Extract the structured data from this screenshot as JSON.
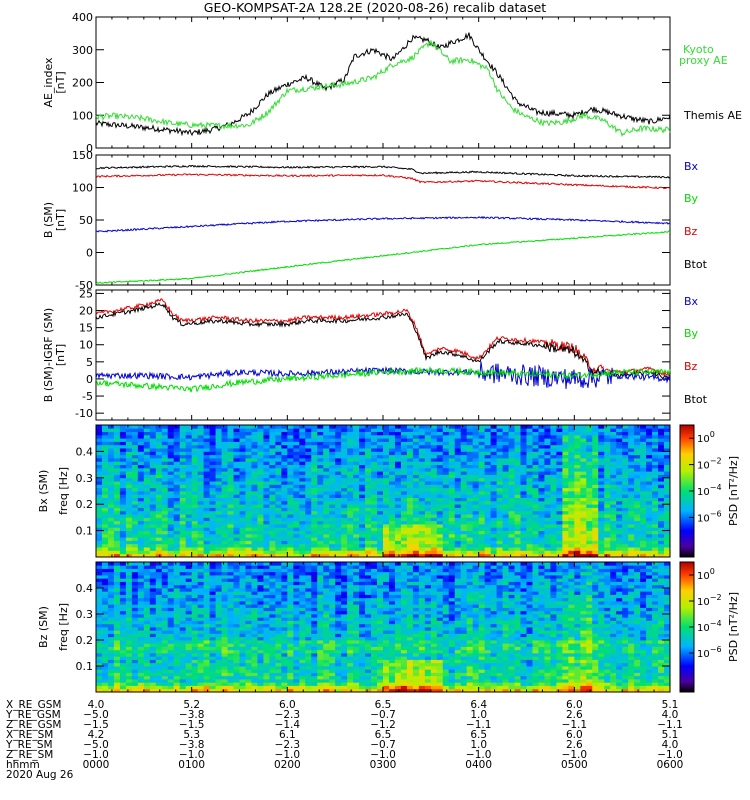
{
  "title": "GEO-KOMPSAT-2A 128.2E (2020-08-26) recalib dataset",
  "colors": {
    "black": "#000000",
    "red": "#e00000",
    "blue": "#0000d0",
    "green": "#00dd00",
    "kyoto": "#33dd33"
  },
  "chart_data": [
    {
      "type": "line",
      "id": "ae",
      "ylabel": "AE_index",
      "yunit": "[nT]",
      "ylim": [
        0,
        400
      ],
      "yticks": [
        "0",
        "100",
        "200",
        "300",
        "400"
      ],
      "legend": [
        {
          "label": "Kyoto",
          "color": "#33dd33"
        },
        {
          "label": "proxy AE",
          "color": "#33dd33"
        },
        {
          "label": "Themis AE",
          "color": "#000000"
        }
      ],
      "series": [
        {
          "name": "Themis AE",
          "color": "#000000",
          "x": [
            0,
            0.3,
            0.6,
            0.9,
            1.0,
            1.2,
            1.4,
            1.6,
            1.8,
            2.0,
            2.2,
            2.4,
            2.6,
            2.7,
            2.9,
            3.1,
            3.2,
            3.3,
            3.45,
            3.6,
            3.7,
            3.9,
            4.0,
            4.2,
            4.4,
            4.6,
            4.8,
            5.0,
            5.2,
            5.4,
            5.6,
            5.8,
            6.0
          ],
          "values": [
            75,
            68,
            60,
            50,
            45,
            55,
            72,
            105,
            165,
            195,
            215,
            180,
            210,
            280,
            300,
            270,
            300,
            335,
            330,
            305,
            320,
            345,
            300,
            225,
            140,
            110,
            105,
            100,
            120,
            105,
            90,
            80,
            95
          ]
        },
        {
          "name": "Kyoto proxy AE",
          "color": "#33dd33",
          "x": [
            0,
            0.2,
            0.5,
            0.8,
            1.0,
            1.3,
            1.6,
            1.8,
            2.0,
            2.3,
            2.6,
            2.9,
            3.1,
            3.3,
            3.5,
            3.7,
            3.9,
            4.1,
            4.2,
            4.35,
            4.5,
            4.7,
            4.9,
            5.1,
            5.3,
            5.5,
            5.7,
            6.0
          ],
          "values": [
            95,
            98,
            90,
            75,
            70,
            68,
            70,
            110,
            175,
            185,
            195,
            215,
            255,
            275,
            325,
            265,
            270,
            240,
            175,
            120,
            95,
            75,
            80,
            100,
            85,
            45,
            60,
            55
          ]
        }
      ]
    },
    {
      "type": "line",
      "id": "b",
      "ylabel": "B (SM)",
      "yunit": "[nT]",
      "ylim": [
        -50,
        150
      ],
      "yticks": [
        "-50",
        "0",
        "50",
        "100",
        "150"
      ],
      "legend": [
        {
          "label": "Bx",
          "color": "#0000d0"
        },
        {
          "label": "By",
          "color": "#00dd00"
        },
        {
          "label": "Bz",
          "color": "#e00000"
        },
        {
          "label": "Btot",
          "color": "#000000"
        }
      ],
      "series": [
        {
          "name": "Btot",
          "color": "#000000",
          "x": [
            0,
            1,
            2,
            3,
            3.3,
            3.4,
            4,
            5,
            6
          ],
          "values": [
            130,
            133,
            131,
            132,
            128,
            122,
            124,
            118,
            116
          ]
        },
        {
          "name": "Bz",
          "color": "#e00000",
          "x": [
            0,
            1,
            2,
            3,
            3.3,
            3.4,
            4,
            5,
            6
          ],
          "values": [
            117,
            120,
            118,
            119,
            114,
            108,
            110,
            104,
            99
          ]
        },
        {
          "name": "Bx",
          "color": "#0000d0",
          "x": [
            0,
            1,
            2,
            3,
            4,
            5,
            6
          ],
          "values": [
            32,
            40,
            48,
            52,
            54,
            50,
            45
          ]
        },
        {
          "name": "By",
          "color": "#00dd00",
          "x": [
            0,
            1,
            2,
            3,
            4,
            5,
            6
          ],
          "values": [
            -47,
            -40,
            -22,
            -5,
            12,
            22,
            32
          ]
        }
      ]
    },
    {
      "type": "line",
      "id": "dbigrf",
      "ylabel": "B (SM)-IGRF (SM)",
      "yunit": "[nT]",
      "ylim": [
        -12,
        26
      ],
      "yticks": [
        "-10",
        "-5",
        "0",
        "5",
        "10",
        "15",
        "20",
        "25"
      ],
      "legend": [
        {
          "label": "Bx",
          "color": "#0000d0"
        },
        {
          "label": "By",
          "color": "#00dd00"
        },
        {
          "label": "Bz",
          "color": "#e00000"
        },
        {
          "label": "Btot",
          "color": "#000000"
        }
      ],
      "series": [
        {
          "name": "Bz",
          "color": "#e00000",
          "x": [
            0,
            0.4,
            0.7,
            0.8,
            0.9,
            1.3,
            1.6,
            2.0,
            2.2,
            2.6,
            3.0,
            3.25,
            3.35,
            3.45,
            3.6,
            3.8,
            4.0,
            4.2,
            4.6,
            4.8,
            5.0,
            5.2,
            5.5,
            5.8,
            6.0
          ],
          "values": [
            19,
            21,
            23,
            19,
            17,
            18,
            17,
            17,
            18,
            18,
            19,
            20,
            15,
            7,
            9,
            8,
            6,
            12,
            11,
            10,
            9,
            3,
            2,
            3,
            1
          ]
        },
        {
          "name": "Btot",
          "color": "#000000",
          "x": [
            0,
            0.4,
            0.7,
            0.8,
            0.9,
            1.3,
            1.6,
            2.0,
            2.2,
            2.6,
            3.0,
            3.25,
            3.35,
            3.45,
            3.6,
            3.8,
            4.0,
            4.2,
            4.6,
            4.8,
            5.0,
            5.2,
            5.5,
            5.8,
            6.0
          ],
          "values": [
            18,
            20,
            22,
            18,
            16,
            17,
            16,
            16,
            17,
            17,
            18,
            19,
            14,
            6,
            8,
            7,
            5,
            11,
            10,
            9,
            8,
            2,
            1,
            2,
            0
          ]
        },
        {
          "name": "Bx",
          "color": "#0000d0",
          "x": [
            0,
            0.5,
            1.0,
            1.5,
            2.0,
            2.5,
            3.0,
            3.5,
            4.0,
            4.5,
            5.0,
            5.5,
            6.0
          ],
          "values": [
            1,
            1,
            0.5,
            2,
            1.5,
            2,
            2.5,
            2,
            2,
            1,
            0,
            1,
            0
          ]
        },
        {
          "name": "By",
          "color": "#00dd00",
          "x": [
            0,
            0.5,
            1.0,
            1.5,
            2.0,
            2.5,
            3.0,
            3.5,
            4.0,
            4.5,
            5.0,
            5.5,
            6.0
          ],
          "values": [
            -1,
            -2,
            -3,
            -1,
            0,
            1,
            2,
            2.5,
            2,
            1.5,
            1,
            2,
            2
          ]
        }
      ]
    },
    {
      "type": "heatmap",
      "id": "bx_psd",
      "ylabel": "Bx (SM)",
      "yunit": "freq [Hz]",
      "ylim": [
        0,
        0.5
      ],
      "yticks": [
        "0.1",
        "0.2",
        "0.3",
        "0.4"
      ],
      "colorbar": {
        "label": "PSD [nT²/Hz]",
        "range_log10": [
          -9,
          1
        ],
        "ticks": [
          "10^0",
          "10^-2",
          "10^-4",
          "10^-6"
        ]
      }
    },
    {
      "type": "heatmap",
      "id": "bz_psd",
      "ylabel": "Bz (SM)",
      "yunit": "freq [Hz]",
      "ylim": [
        0,
        0.5
      ],
      "yticks": [
        "0.1",
        "0.2",
        "0.3",
        "0.4"
      ],
      "colorbar": {
        "label": "PSD [nT²/Hz]",
        "range_log10": [
          -9,
          1
        ],
        "ticks": [
          "10^0",
          "10^-2",
          "10^-4",
          "10^-6"
        ]
      }
    }
  ],
  "xaxis": {
    "row_labels": [
      "X_RE_GSM",
      "Y_RE_GSM",
      "Z_RE_GSM",
      "X_RE_SM",
      "Y_RE_SM",
      "Z_RE_SM",
      "hhmm"
    ],
    "date": "2020 Aug 26",
    "columns": [
      [
        "4.0",
        "-5.0",
        "-1.5",
        "4.2",
        "-5.0",
        "-1.0",
        "0000"
      ],
      [
        "5.2",
        "-3.8",
        "-1.5",
        "5.3",
        "-3.8",
        "-1.0",
        "0100"
      ],
      [
        "6.0",
        "-2.3",
        "-1.4",
        "6.1",
        "-2.3",
        "-1.0",
        "0200"
      ],
      [
        "6.5",
        "-0.7",
        "-1.2",
        "6.5",
        "-0.7",
        "-1.0",
        "0300"
      ],
      [
        "6.4",
        "1.0",
        "-1.1",
        "6.5",
        "1.0",
        "-1.0",
        "0400"
      ],
      [
        "6.0",
        "2.6",
        "-1.1",
        "6.0",
        "2.6",
        "-1.0",
        "0500"
      ],
      [
        "5.1",
        "4.0",
        "-1.1",
        "5.1",
        "4.0",
        "-1.0",
        "0600"
      ]
    ]
  }
}
